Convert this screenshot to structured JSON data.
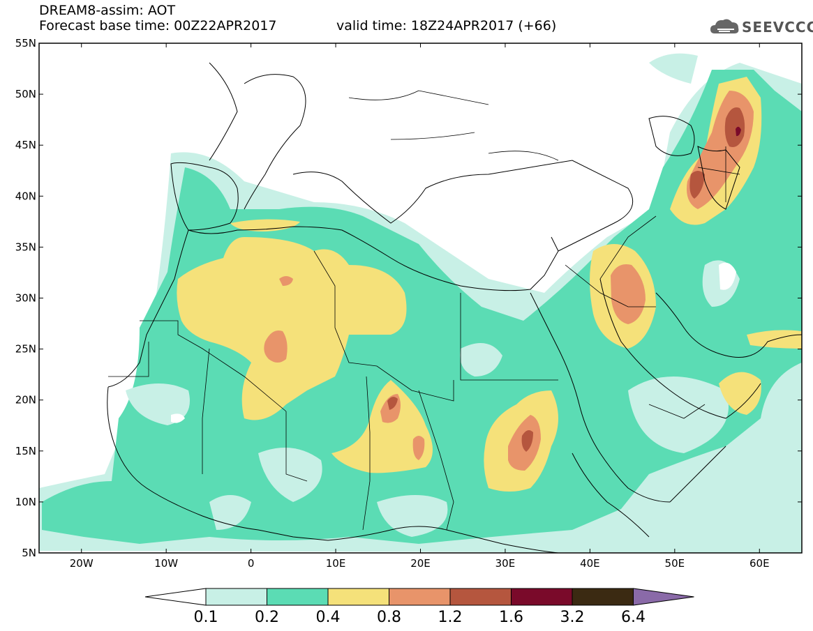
{
  "header": {
    "line1": "DREAM8-assim: AOT",
    "line2": "Forecast base time: 00Z22APR2017",
    "valid": "valid time: 18Z24APR2017 (+66)",
    "logo_text": "SEEVCCC",
    "logo_icon": "cloud-icon"
  },
  "axes": {
    "lat_labels": [
      "55N",
      "50N",
      "45N",
      "40N",
      "35N",
      "30N",
      "25N",
      "20N",
      "15N",
      "10N",
      "5N"
    ],
    "lon_labels": [
      "20W",
      "10W",
      "0",
      "10E",
      "20E",
      "30E",
      "40E",
      "50E",
      "60E"
    ]
  },
  "legend": {
    "colors": [
      "#ffffff",
      "#c8f0e6",
      "#5bdcb4",
      "#f5e17a",
      "#e8946a",
      "#b5563e",
      "#7a0a2a",
      "#3b2a12",
      "#8a6aa8"
    ],
    "labels": [
      "0.1",
      "0.2",
      "0.4",
      "0.8",
      "1.2",
      "1.6",
      "3.2",
      "6.4"
    ]
  }
}
